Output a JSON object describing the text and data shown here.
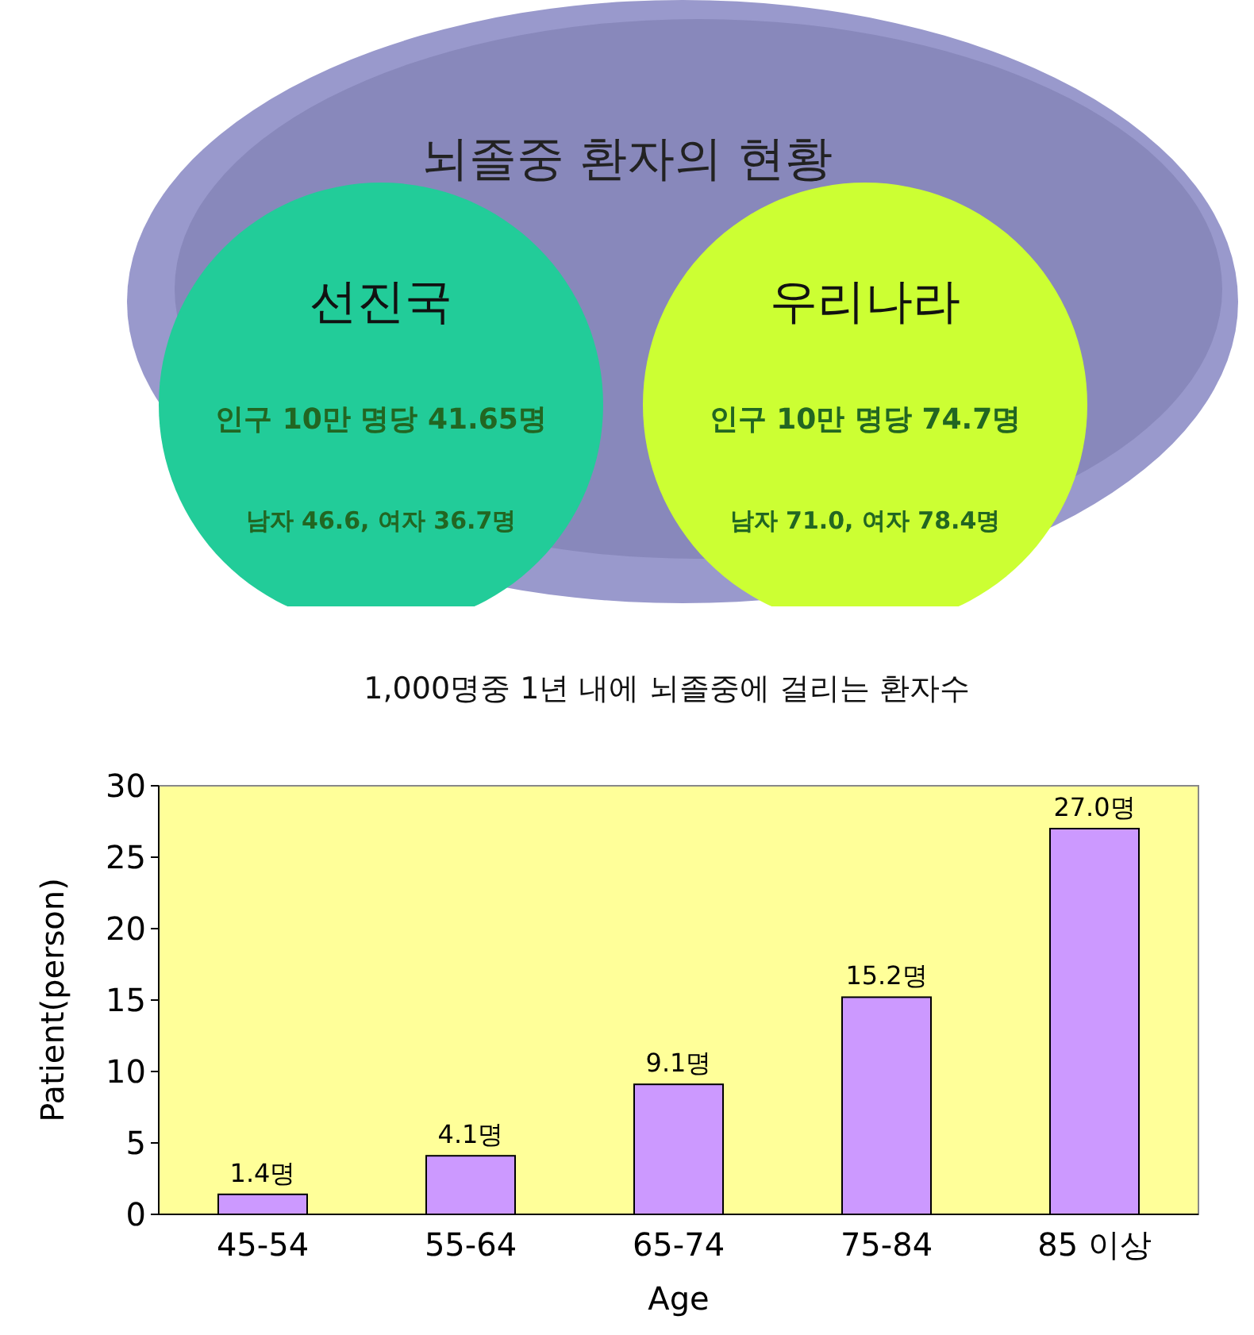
{
  "chart_data": [
    {
      "type": "other",
      "title": "뇌졸중 환자의 현황",
      "annotations": [
        "선진국",
        "인구 10만 명당 41.65명",
        "남자 46.6, 여자 36.7명",
        "우리나라",
        "인구 10만 명당 74.7명",
        "남자 71.0, 여자 78.4명"
      ]
    },
    {
      "type": "bar",
      "title": "1,000명중 1년 내에 뇌졸중에 걸리는 환자수",
      "categories": [
        "45-54",
        "55-64",
        "65-74",
        "75-84",
        "85 이상"
      ],
      "values": [
        1.4,
        4.1,
        9.1,
        15.2,
        27.0
      ],
      "value_labels": [
        "1.4명",
        "4.1명",
        "9.1명",
        "15.2명",
        "27.0명"
      ],
      "color": "#cc99ff",
      "ylim": [
        0,
        30
      ],
      "yticks": [
        0,
        5,
        10,
        15,
        20,
        25,
        30
      ],
      "xlabel": "Age",
      "ylabel": "Patient(person)",
      "grid": false
    }
  ]
}
